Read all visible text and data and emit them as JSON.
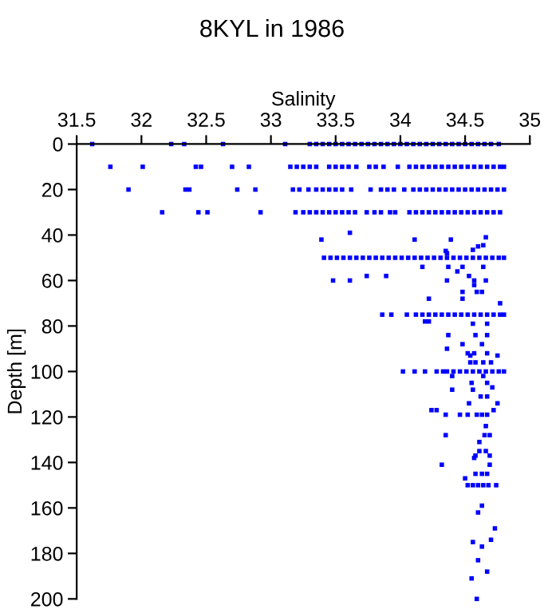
{
  "chart_data": {
    "type": "scatter",
    "title": "8KYL in 1986",
    "xlabel": "Salinity",
    "ylabel": "Depth [m]",
    "xlim": [
      31.5,
      35
    ],
    "xticks": [
      31.5,
      32,
      32.5,
      33,
      33.5,
      34,
      34.5,
      35
    ],
    "ylim": [
      200,
      0
    ],
    "yticks": [
      0,
      20,
      40,
      60,
      80,
      100,
      120,
      140,
      160,
      180,
      200
    ],
    "grid": false,
    "marker": "square",
    "series": [
      {
        "color": "#0000ff",
        "x": [
          31.62,
          32.23,
          32.33,
          32.63,
          33.11,
          33.3,
          33.35,
          33.4,
          33.45,
          33.5,
          33.55,
          33.6,
          33.65,
          33.7,
          33.75,
          33.8,
          33.85,
          33.9,
          33.95,
          34.0,
          34.05,
          34.1,
          34.15,
          34.2,
          34.25,
          34.3,
          34.35,
          34.4,
          34.45,
          34.5,
          34.55,
          34.6,
          34.65,
          34.7,
          34.76
        ],
        "values": [
          0,
          0,
          0,
          0,
          0,
          0,
          0,
          0,
          0,
          0,
          0,
          0,
          0,
          0,
          0,
          0,
          0,
          0,
          0,
          0,
          0,
          0,
          0,
          0,
          0,
          0,
          0,
          0,
          0,
          0,
          0,
          0,
          0,
          0,
          0
        ]
      },
      {
        "color": "#0000ff",
        "x": [
          31.76,
          32.01,
          32.42,
          32.46,
          32.7,
          32.83,
          33.15,
          33.2,
          33.25,
          33.3,
          33.35,
          33.45,
          33.5,
          33.55,
          33.6,
          33.66,
          33.76,
          33.81,
          33.87,
          33.98,
          34.07,
          34.12,
          34.17,
          34.22,
          34.27,
          34.32,
          34.37,
          34.42,
          34.47,
          34.52,
          34.57,
          34.62,
          34.67,
          34.72,
          34.77,
          34.8
        ],
        "values": [
          10,
          10,
          10,
          10,
          10,
          10,
          10,
          10,
          10,
          10,
          10,
          10,
          10,
          10,
          10,
          10,
          10,
          10,
          10,
          10,
          10,
          10,
          10,
          10,
          10,
          10,
          10,
          10,
          10,
          10,
          10,
          10,
          10,
          10,
          10,
          10
        ]
      },
      {
        "color": "#0000ff",
        "x": [
          31.9,
          32.34,
          32.37,
          32.74,
          32.88,
          33.17,
          33.22,
          33.29,
          33.35,
          33.4,
          33.45,
          33.5,
          33.55,
          33.62,
          33.77,
          33.85,
          33.9,
          33.95,
          34.03,
          34.1,
          34.15,
          34.2,
          34.25,
          34.3,
          34.35,
          34.4,
          34.45,
          34.5,
          34.55,
          34.6,
          34.65,
          34.7,
          34.75,
          34.8
        ],
        "values": [
          20,
          20,
          20,
          20,
          20,
          20,
          20,
          20,
          20,
          20,
          20,
          20,
          20,
          20,
          20,
          20,
          20,
          20,
          20,
          20,
          20,
          20,
          20,
          20,
          20,
          20,
          20,
          20,
          20,
          20,
          20,
          20,
          20,
          20
        ]
      },
      {
        "color": "#0000ff",
        "x": [
          32.16,
          32.44,
          32.51,
          32.92,
          33.19,
          33.25,
          33.3,
          33.35,
          33.4,
          33.45,
          33.5,
          33.55,
          33.6,
          33.65,
          33.74,
          33.8,
          33.85,
          33.92,
          33.96,
          34.07,
          34.12,
          34.17,
          34.22,
          34.27,
          34.32,
          34.37,
          34.42,
          34.47,
          34.52,
          34.57,
          34.62,
          34.67,
          34.72,
          34.77
        ],
        "values": [
          30,
          30,
          30,
          30,
          30,
          30,
          30,
          30,
          30,
          30,
          30,
          30,
          30,
          30,
          30,
          30,
          30,
          30,
          30,
          30,
          30,
          30,
          30,
          30,
          30,
          30,
          30,
          30,
          30,
          30,
          30,
          30,
          30,
          30
        ]
      },
      {
        "color": "#0000ff",
        "x": [
          33.41,
          33.46,
          33.51,
          33.56,
          33.61,
          33.66,
          33.71,
          33.76,
          33.81,
          33.86,
          33.91,
          33.96,
          34.01,
          34.06,
          34.11,
          34.16,
          34.21,
          34.26,
          34.31,
          34.36,
          34.41,
          34.46,
          34.51,
          34.56,
          34.61,
          34.66,
          34.71,
          34.76,
          34.8
        ],
        "values": [
          50,
          50,
          50,
          50,
          50,
          50,
          50,
          50,
          50,
          50,
          50,
          50,
          50,
          50,
          50,
          50,
          50,
          50,
          50,
          50,
          50,
          50,
          50,
          50,
          50,
          50,
          50,
          50,
          50
        ]
      },
      {
        "color": "#0000ff",
        "x": [
          33.86,
          33.93,
          34.05,
          34.12,
          34.17,
          34.22,
          34.27,
          34.32,
          34.37,
          34.42,
          34.47,
          34.52,
          34.57,
          34.62,
          34.67,
          34.72,
          34.77,
          34.8
        ],
        "values": [
          75,
          75,
          75,
          75,
          75,
          75,
          75,
          75,
          75,
          75,
          75,
          75,
          75,
          75,
          75,
          75,
          75,
          75
        ]
      },
      {
        "color": "#0000ff",
        "x": [
          34.02,
          34.11,
          34.19,
          34.28,
          34.33,
          34.36,
          34.41,
          34.46,
          34.51,
          34.56,
          34.61,
          34.66,
          34.71,
          34.76,
          34.8
        ],
        "values": [
          100,
          100,
          100,
          100,
          100,
          100,
          100,
          100,
          100,
          100,
          100,
          100,
          100,
          100,
          100
        ]
      },
      {
        "color": "#0000ff",
        "x": [
          34.52,
          34.56,
          34.6,
          34.64,
          34.68,
          34.74
        ],
        "values": [
          150,
          150,
          150,
          150,
          150,
          150
        ]
      },
      {
        "color": "#0000ff",
        "x": [
          33.39,
          33.61,
          34.11,
          34.39,
          34.66,
          34.64,
          34.35,
          34.56,
          34.36,
          34.6,
          34.17,
          34.37,
          34.48,
          34.64,
          34.44,
          33.74,
          33.89,
          34.53,
          33.48,
          33.61,
          34.36,
          34.57,
          34.66,
          34.57,
          34.48,
          34.59,
          34.63,
          34.22,
          34.48,
          34.77,
          34.19,
          34.22,
          34.56,
          34.67,
          34.37,
          34.58,
          34.67,
          34.48,
          34.63,
          34.36,
          34.52,
          34.57,
          34.67,
          34.54,
          34.75,
          34.54,
          34.58,
          34.64,
          34.7,
          34.4,
          34.64,
          34.55,
          34.67,
          34.71,
          34.4,
          34.56,
          34.62,
          34.67,
          34.53,
          34.75,
          34.24,
          34.28,
          34.72,
          34.35,
          34.46,
          34.52,
          34.59,
          34.63,
          34.67,
          34.66,
          34.35,
          34.65,
          34.69,
          34.61,
          34.61,
          34.66,
          34.58,
          34.69,
          34.57,
          34.32,
          34.69,
          34.58,
          34.63,
          34.67,
          34.5,
          34.63,
          34.6,
          34.73,
          34.7,
          34.56,
          34.63,
          34.6,
          34.67,
          34.55,
          34.59
        ],
        "values": [
          42,
          39,
          42,
          42,
          41,
          44.5,
          47,
          46.5,
          48,
          45,
          54,
          54,
          54,
          54,
          56,
          58,
          58,
          58,
          60,
          60,
          60,
          60,
          60,
          62,
          65,
          65,
          65,
          68,
          68,
          70,
          78,
          78,
          79,
          79,
          84,
          84,
          84,
          88,
          88,
          90,
          92,
          92,
          92,
          93,
          93,
          96,
          96,
          96,
          96,
          102,
          102,
          105,
          105,
          107,
          108,
          108,
          111,
          111,
          114,
          114,
          117,
          117,
          117,
          119,
          119,
          119,
          119,
          119,
          119,
          124,
          128,
          128,
          128,
          131,
          135,
          135,
          137,
          137,
          138,
          141,
          141,
          145,
          145,
          145,
          147,
          159,
          162,
          169,
          174,
          175,
          177,
          183,
          188,
          191,
          200
        ]
      }
    ]
  }
}
